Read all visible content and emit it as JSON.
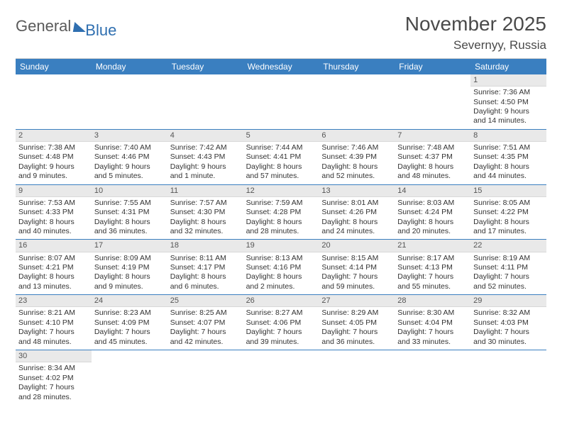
{
  "logo": {
    "text1": "General",
    "text2": "Blue"
  },
  "header": {
    "month_title": "November 2025",
    "location": "Severnyy, Russia"
  },
  "colors": {
    "header_bar": "#3a7fc0",
    "row_divider": "#3a7fc0",
    "daynum_bg": "#e9e9e9",
    "text": "#333333",
    "title_text": "#4a4a4a"
  },
  "weekdays": [
    "Sunday",
    "Monday",
    "Tuesday",
    "Wednesday",
    "Thursday",
    "Friday",
    "Saturday"
  ],
  "weeks": [
    [
      null,
      null,
      null,
      null,
      null,
      null,
      {
        "n": "1",
        "sunrise": "Sunrise: 7:36 AM",
        "sunset": "Sunset: 4:50 PM",
        "day1": "Daylight: 9 hours",
        "day2": "and 14 minutes."
      }
    ],
    [
      {
        "n": "2",
        "sunrise": "Sunrise: 7:38 AM",
        "sunset": "Sunset: 4:48 PM",
        "day1": "Daylight: 9 hours",
        "day2": "and 9 minutes."
      },
      {
        "n": "3",
        "sunrise": "Sunrise: 7:40 AM",
        "sunset": "Sunset: 4:46 PM",
        "day1": "Daylight: 9 hours",
        "day2": "and 5 minutes."
      },
      {
        "n": "4",
        "sunrise": "Sunrise: 7:42 AM",
        "sunset": "Sunset: 4:43 PM",
        "day1": "Daylight: 9 hours",
        "day2": "and 1 minute."
      },
      {
        "n": "5",
        "sunrise": "Sunrise: 7:44 AM",
        "sunset": "Sunset: 4:41 PM",
        "day1": "Daylight: 8 hours",
        "day2": "and 57 minutes."
      },
      {
        "n": "6",
        "sunrise": "Sunrise: 7:46 AM",
        "sunset": "Sunset: 4:39 PM",
        "day1": "Daylight: 8 hours",
        "day2": "and 52 minutes."
      },
      {
        "n": "7",
        "sunrise": "Sunrise: 7:48 AM",
        "sunset": "Sunset: 4:37 PM",
        "day1": "Daylight: 8 hours",
        "day2": "and 48 minutes."
      },
      {
        "n": "8",
        "sunrise": "Sunrise: 7:51 AM",
        "sunset": "Sunset: 4:35 PM",
        "day1": "Daylight: 8 hours",
        "day2": "and 44 minutes."
      }
    ],
    [
      {
        "n": "9",
        "sunrise": "Sunrise: 7:53 AM",
        "sunset": "Sunset: 4:33 PM",
        "day1": "Daylight: 8 hours",
        "day2": "and 40 minutes."
      },
      {
        "n": "10",
        "sunrise": "Sunrise: 7:55 AM",
        "sunset": "Sunset: 4:31 PM",
        "day1": "Daylight: 8 hours",
        "day2": "and 36 minutes."
      },
      {
        "n": "11",
        "sunrise": "Sunrise: 7:57 AM",
        "sunset": "Sunset: 4:30 PM",
        "day1": "Daylight: 8 hours",
        "day2": "and 32 minutes."
      },
      {
        "n": "12",
        "sunrise": "Sunrise: 7:59 AM",
        "sunset": "Sunset: 4:28 PM",
        "day1": "Daylight: 8 hours",
        "day2": "and 28 minutes."
      },
      {
        "n": "13",
        "sunrise": "Sunrise: 8:01 AM",
        "sunset": "Sunset: 4:26 PM",
        "day1": "Daylight: 8 hours",
        "day2": "and 24 minutes."
      },
      {
        "n": "14",
        "sunrise": "Sunrise: 8:03 AM",
        "sunset": "Sunset: 4:24 PM",
        "day1": "Daylight: 8 hours",
        "day2": "and 20 minutes."
      },
      {
        "n": "15",
        "sunrise": "Sunrise: 8:05 AM",
        "sunset": "Sunset: 4:22 PM",
        "day1": "Daylight: 8 hours",
        "day2": "and 17 minutes."
      }
    ],
    [
      {
        "n": "16",
        "sunrise": "Sunrise: 8:07 AM",
        "sunset": "Sunset: 4:21 PM",
        "day1": "Daylight: 8 hours",
        "day2": "and 13 minutes."
      },
      {
        "n": "17",
        "sunrise": "Sunrise: 8:09 AM",
        "sunset": "Sunset: 4:19 PM",
        "day1": "Daylight: 8 hours",
        "day2": "and 9 minutes."
      },
      {
        "n": "18",
        "sunrise": "Sunrise: 8:11 AM",
        "sunset": "Sunset: 4:17 PM",
        "day1": "Daylight: 8 hours",
        "day2": "and 6 minutes."
      },
      {
        "n": "19",
        "sunrise": "Sunrise: 8:13 AM",
        "sunset": "Sunset: 4:16 PM",
        "day1": "Daylight: 8 hours",
        "day2": "and 2 minutes."
      },
      {
        "n": "20",
        "sunrise": "Sunrise: 8:15 AM",
        "sunset": "Sunset: 4:14 PM",
        "day1": "Daylight: 7 hours",
        "day2": "and 59 minutes."
      },
      {
        "n": "21",
        "sunrise": "Sunrise: 8:17 AM",
        "sunset": "Sunset: 4:13 PM",
        "day1": "Daylight: 7 hours",
        "day2": "and 55 minutes."
      },
      {
        "n": "22",
        "sunrise": "Sunrise: 8:19 AM",
        "sunset": "Sunset: 4:11 PM",
        "day1": "Daylight: 7 hours",
        "day2": "and 52 minutes."
      }
    ],
    [
      {
        "n": "23",
        "sunrise": "Sunrise: 8:21 AM",
        "sunset": "Sunset: 4:10 PM",
        "day1": "Daylight: 7 hours",
        "day2": "and 48 minutes."
      },
      {
        "n": "24",
        "sunrise": "Sunrise: 8:23 AM",
        "sunset": "Sunset: 4:09 PM",
        "day1": "Daylight: 7 hours",
        "day2": "and 45 minutes."
      },
      {
        "n": "25",
        "sunrise": "Sunrise: 8:25 AM",
        "sunset": "Sunset: 4:07 PM",
        "day1": "Daylight: 7 hours",
        "day2": "and 42 minutes."
      },
      {
        "n": "26",
        "sunrise": "Sunrise: 8:27 AM",
        "sunset": "Sunset: 4:06 PM",
        "day1": "Daylight: 7 hours",
        "day2": "and 39 minutes."
      },
      {
        "n": "27",
        "sunrise": "Sunrise: 8:29 AM",
        "sunset": "Sunset: 4:05 PM",
        "day1": "Daylight: 7 hours",
        "day2": "and 36 minutes."
      },
      {
        "n": "28",
        "sunrise": "Sunrise: 8:30 AM",
        "sunset": "Sunset: 4:04 PM",
        "day1": "Daylight: 7 hours",
        "day2": "and 33 minutes."
      },
      {
        "n": "29",
        "sunrise": "Sunrise: 8:32 AM",
        "sunset": "Sunset: 4:03 PM",
        "day1": "Daylight: 7 hours",
        "day2": "and 30 minutes."
      }
    ],
    [
      {
        "n": "30",
        "sunrise": "Sunrise: 8:34 AM",
        "sunset": "Sunset: 4:02 PM",
        "day1": "Daylight: 7 hours",
        "day2": "and 28 minutes."
      },
      null,
      null,
      null,
      null,
      null,
      null
    ]
  ]
}
